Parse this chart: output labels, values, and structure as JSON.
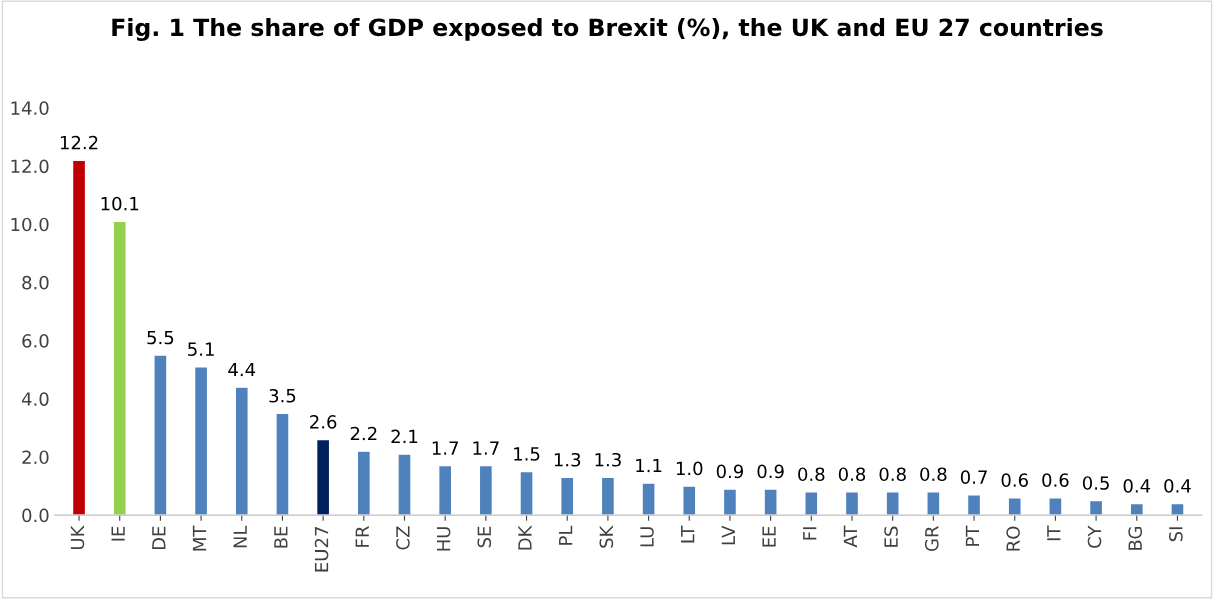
{
  "chart_data": {
    "type": "bar",
    "title": "Fig. 1 The share of GDP exposed to Brexit (%), the UK and EU 27 countries",
    "categories": [
      "UK",
      "IE",
      "DE",
      "MT",
      "NL",
      "BE",
      "EU27",
      "FR",
      "CZ",
      "HU",
      "SE",
      "DK",
      "PL",
      "SK",
      "LU",
      "LT",
      "LV",
      "EE",
      "FI",
      "AT",
      "ES",
      "GR",
      "PT",
      "RO",
      "IT",
      "CY",
      "BG",
      "SI"
    ],
    "values": [
      12.2,
      10.1,
      5.5,
      5.1,
      4.4,
      3.5,
      2.6,
      2.2,
      2.1,
      1.7,
      1.7,
      1.5,
      1.3,
      1.3,
      1.1,
      1.0,
      0.9,
      0.9,
      0.8,
      0.8,
      0.8,
      0.8,
      0.7,
      0.6,
      0.6,
      0.5,
      0.4,
      0.4
    ],
    "value_labels": [
      "12.2",
      "10.1",
      "5.5",
      "5.1",
      "4.4",
      "3.5",
      "2.6",
      "2.2",
      "2.1",
      "1.7",
      "1.7",
      "1.5",
      "1.3",
      "1.3",
      "1.1",
      "1.0",
      "0.9",
      "0.9",
      "0.8",
      "0.8",
      "0.8",
      "0.8",
      "0.7",
      "0.6",
      "0.6",
      "0.5",
      "0.4",
      "0.4"
    ],
    "colors": [
      "#c00000",
      "#92d050",
      "#4f81bd",
      "#4f81bd",
      "#4f81bd",
      "#4f81bd",
      "#002060",
      "#4f81bd",
      "#4f81bd",
      "#4f81bd",
      "#4f81bd",
      "#4f81bd",
      "#4f81bd",
      "#4f81bd",
      "#4f81bd",
      "#4f81bd",
      "#4f81bd",
      "#4f81bd",
      "#4f81bd",
      "#4f81bd",
      "#4f81bd",
      "#4f81bd",
      "#4f81bd",
      "#4f81bd",
      "#4f81bd",
      "#4f81bd",
      "#4f81bd",
      "#4f81bd"
    ],
    "ylim": [
      0,
      14
    ],
    "yticks": [
      {
        "value": 0,
        "label": "0.0"
      },
      {
        "value": 2,
        "label": "2.0"
      },
      {
        "value": 4,
        "label": "4.0"
      },
      {
        "value": 6,
        "label": "6.0"
      },
      {
        "value": 8,
        "label": "8.0"
      },
      {
        "value": 10,
        "label": "10.0"
      },
      {
        "value": 12,
        "label": "12.0"
      },
      {
        "value": 14,
        "label": "14.0"
      }
    ],
    "grid": false,
    "legend": false
  }
}
